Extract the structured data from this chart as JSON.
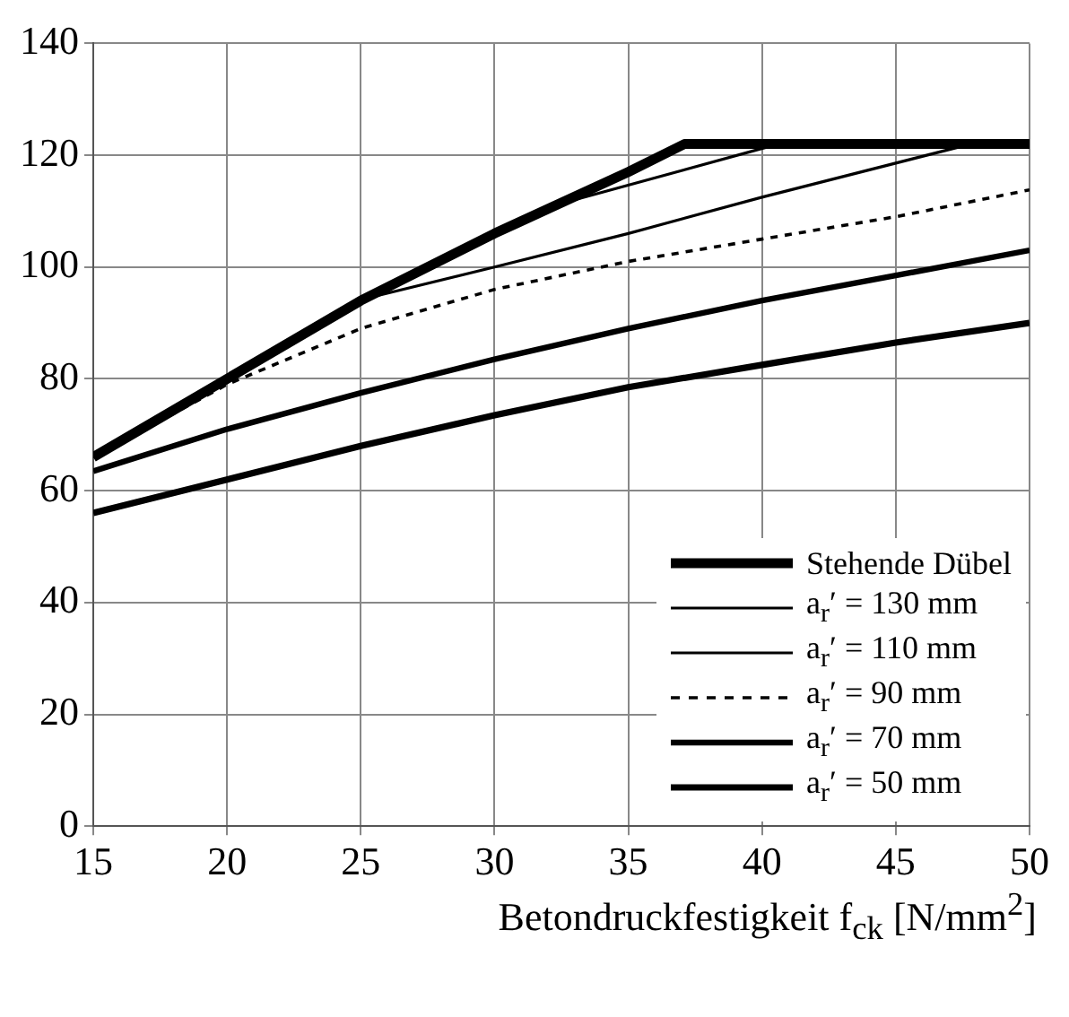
{
  "chart_data": {
    "type": "line",
    "xlabel": "Betondruckfestigkeit f$_{ck}$ [N/mm$^{2}$]",
    "xlim": [
      15,
      50
    ],
    "xticks": [
      15,
      20,
      25,
      30,
      35,
      40,
      45,
      50
    ],
    "ylim": [
      0,
      140
    ],
    "yticks": [
      0,
      20,
      40,
      60,
      80,
      100,
      120,
      140
    ],
    "grid": true,
    "legend": "bottom right",
    "marker": "none",
    "series": [
      {
        "name": "Stehende Dübel",
        "color": "#000000",
        "x": [
          15,
          20,
          25,
          30,
          35,
          37.1,
          50
        ],
        "values": [
          66,
          80,
          94,
          106,
          117,
          122,
          122
        ]
      },
      {
        "name": "a$_{r}$′ = 130 mm",
        "color": "#000000",
        "x": [
          15,
          20,
          25,
          30,
          32.6,
          40.6,
          50
        ],
        "values": [
          66,
          80,
          94,
          106,
          111.5,
          122,
          122
        ]
      },
      {
        "name": "a$_{r}$′ = 110 mm",
        "color": "#000000",
        "x": [
          15,
          20,
          25.3,
          30,
          35,
          40,
          47.8,
          50
        ],
        "values": [
          66,
          80,
          94.5,
          100,
          106,
          112.5,
          122,
          122
        ]
      },
      {
        "name": "a$_{r}$′ = 90 mm",
        "color": "#000000",
        "line_style": "dotted",
        "x": [
          15,
          20,
          25,
          30,
          35,
          40,
          45,
          50
        ],
        "values": [
          66,
          79,
          89,
          96,
          101,
          105,
          109,
          113.8
        ]
      },
      {
        "name": "a$_{r}$′ = 70 mm",
        "color": "#000000",
        "x": [
          15,
          20,
          25,
          30,
          35,
          40,
          45,
          50
        ],
        "values": [
          63.5,
          71,
          77.5,
          83.5,
          89,
          94,
          98.5,
          103
        ]
      },
      {
        "name": "a$_{r}$′ = 50 mm",
        "color": "#000000",
        "x": [
          15,
          20,
          25,
          30,
          35,
          40,
          45,
          50
        ],
        "values": [
          56,
          62,
          68,
          73.5,
          78.5,
          82.5,
          86.5,
          90
        ]
      }
    ]
  }
}
